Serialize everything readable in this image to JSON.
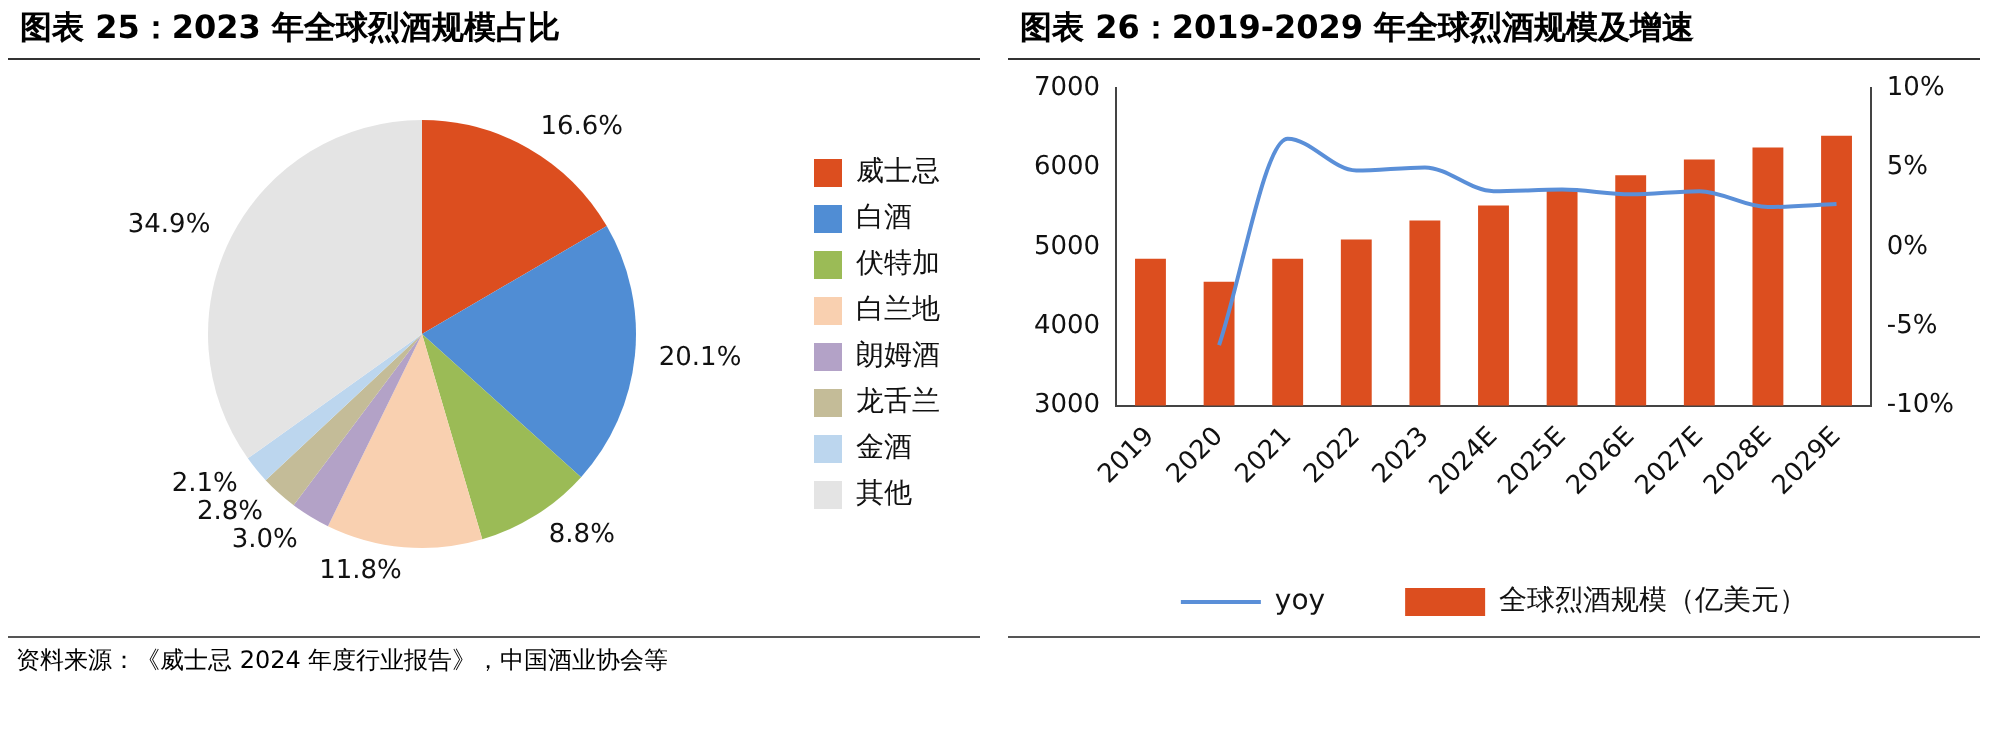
{
  "chart_data": [
    {
      "type": "pie",
      "title": "图表 25：2023 年全球烈酒规模占比",
      "categories": [
        "威士忌",
        "白酒",
        "伏特加",
        "白兰地",
        "朗姆酒",
        "龙舌兰",
        "金酒",
        "其他"
      ],
      "values": [
        16.6,
        20.1,
        8.8,
        11.8,
        3.0,
        2.8,
        2.1,
        34.9
      ],
      "colors": [
        "#dc4e1f",
        "#508dd4",
        "#9bbb56",
        "#f9d0b0",
        "#b3a2c7",
        "#c4bc98",
        "#bcd6ee",
        "#e4e4e4"
      ],
      "value_labels": [
        "16.6%",
        "20.1%",
        "8.8%",
        "11.8%",
        "3.0%",
        "2.8%",
        "2.1%",
        "34.9%"
      ],
      "legend": "right",
      "annotations": [
        "资料来源：《威士忌 2024 年度行业报告》，中国酒业协会等"
      ]
    },
    {
      "type": "bar",
      "title": "图表 26：2019-2029 年全球烈酒规模及增速",
      "categories": [
        "2019",
        "2020",
        "2021",
        "2022",
        "2023",
        "2024E",
        "2025E",
        "2026E",
        "2027E",
        "2028E",
        "2029E"
      ],
      "series": [
        {
          "name": "全球烈酒规模（亿美元）",
          "type": "bar",
          "color": "#dc4e1f",
          "values": [
            4850,
            4560,
            4850,
            5090,
            5330,
            5520,
            5740,
            5900,
            6100,
            6250,
            6400
          ]
        },
        {
          "name": "yoy",
          "type": "line",
          "axis": "y2",
          "color": "#5a8fd8",
          "values": [
            null,
            -6.2,
            6.8,
            4.8,
            5.0,
            3.5,
            3.6,
            3.3,
            3.5,
            2.5,
            2.7
          ]
        }
      ],
      "ylim": [
        3000,
        7000
      ],
      "yticks": [
        3000,
        4000,
        5000,
        6000,
        7000
      ],
      "y2lim": [
        -10,
        10
      ],
      "y2ticks": [
        {
          "value": -10,
          "label": "-10%"
        },
        {
          "value": -5,
          "label": "-5%"
        },
        {
          "value": 0,
          "label": "0%"
        },
        {
          "value": 5,
          "label": "5%"
        },
        {
          "value": 10,
          "label": "10%"
        }
      ],
      "grid": false,
      "legend": "bottom",
      "marker": "none",
      "line_style": "solid"
    }
  ]
}
